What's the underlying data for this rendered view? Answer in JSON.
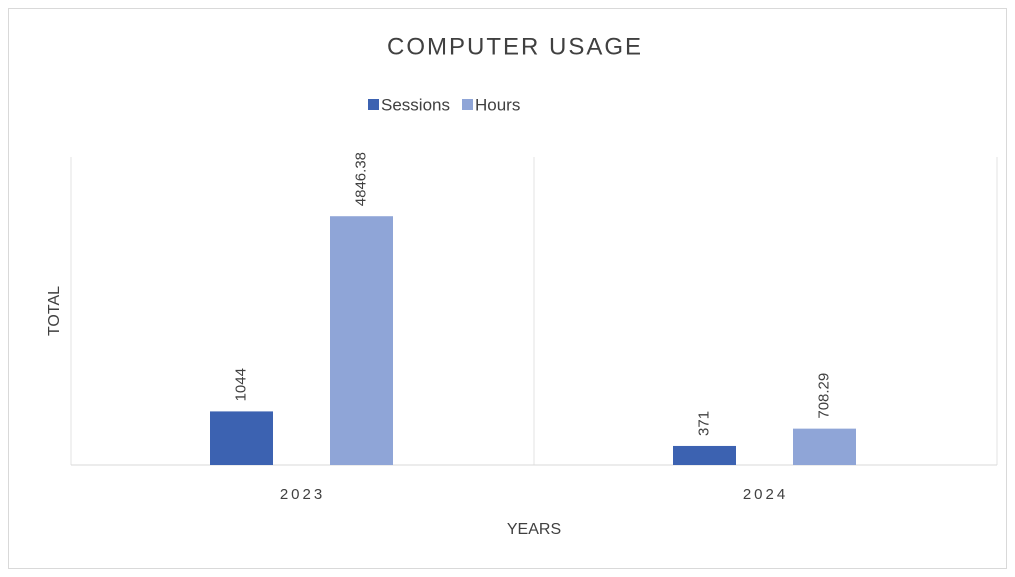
{
  "chart_data": {
    "type": "bar",
    "title": "COMPUTER USAGE",
    "x_label": "YEARS",
    "y_label": "TOTAL",
    "categories": [
      "2023",
      "2024"
    ],
    "series": [
      {
        "name": "Sessions",
        "color": "#3c62b1",
        "values": [
          1044,
          371
        ]
      },
      {
        "name": "Hours",
        "color": "#8fa5d7",
        "values": [
          4846.38,
          708.29
        ]
      }
    ],
    "ylim": [
      0,
      6000
    ],
    "legend": "top"
  }
}
